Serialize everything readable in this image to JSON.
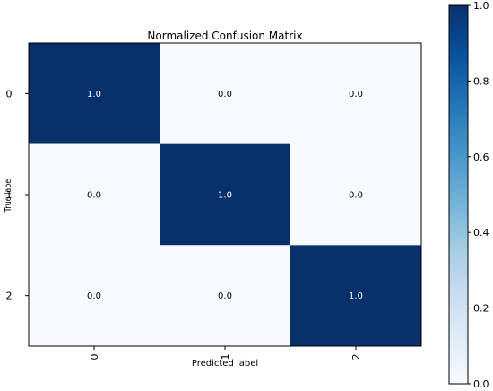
{
  "chart_data": {
    "type": "heatmap",
    "title": "Normalized Confusion Matrix",
    "xlabel": "Predicted label",
    "ylabel": "True label",
    "x_categories": [
      "0",
      "1",
      "2"
    ],
    "y_categories": [
      "0",
      "1",
      "2"
    ],
    "values": [
      [
        1.0,
        0.0,
        0.0
      ],
      [
        0.0,
        1.0,
        0.0
      ],
      [
        0.0,
        0.0,
        1.0
      ]
    ],
    "cell_labels": [
      [
        "1.0",
        "0.0",
        "0.0"
      ],
      [
        "0.0",
        "1.0",
        "0.0"
      ],
      [
        "0.0",
        "0.0",
        "1.0"
      ]
    ],
    "colormap": "Blues",
    "low_color": "#f7fbff",
    "high_color": "#08306b",
    "colorbar": {
      "range": [
        0.0,
        1.0
      ],
      "ticks": [
        "0.0",
        "0.2",
        "0.4",
        "0.6",
        "0.8",
        "1.0"
      ]
    },
    "x_tick_rotation": "vertical"
  }
}
